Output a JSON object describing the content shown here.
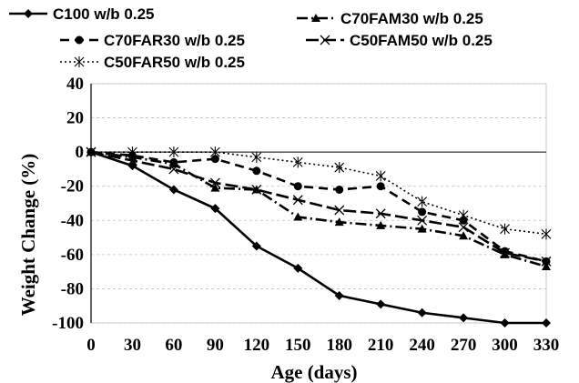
{
  "chart_data": {
    "type": "line",
    "title": "",
    "xlabel": "Age (days)",
    "ylabel": "Weight Change (%)",
    "x": [
      0,
      30,
      60,
      90,
      120,
      150,
      180,
      210,
      240,
      270,
      300,
      330
    ],
    "x_tick_labels": [
      "0",
      "30",
      "60",
      "90",
      "120",
      "150",
      "180",
      "210",
      "240",
      "270",
      "300",
      "330"
    ],
    "ylim": [
      -100,
      40
    ],
    "y_ticks": [
      40,
      20,
      0,
      -20,
      -40,
      -60,
      -80,
      -100
    ],
    "y_tick_labels": [
      "40",
      "20",
      "0",
      "-20",
      "-40",
      "-60",
      "-80",
      "-100"
    ],
    "grid": "horizontal dashed",
    "legend_position": "top",
    "series": [
      {
        "name": "C100 w/b 0.25",
        "marker": "diamond",
        "line_style": "solid",
        "color": "#000000",
        "values": [
          0,
          -8,
          -22,
          -33,
          -55,
          -68,
          -84,
          -89,
          -94,
          -97,
          -100,
          -100
        ]
      },
      {
        "name": "C70FAM30 w/b 0.25",
        "marker": "triangle",
        "line_style": "dash-dot",
        "color": "#000000",
        "values": [
          0,
          -3,
          -7,
          -21,
          -22,
          -38,
          -41,
          -43,
          -45,
          -49,
          -60,
          -67
        ]
      },
      {
        "name": "C70FAR30 w/b 0.25",
        "marker": "circle",
        "line_style": "dashed",
        "color": "#000000",
        "values": [
          0,
          -2,
          -6,
          -4,
          -11,
          -20,
          -22,
          -20,
          -35,
          -40,
          -58,
          -64
        ]
      },
      {
        "name": "C50FAM50 w/b 0.25",
        "marker": "x",
        "line_style": "long-dash",
        "color": "#000000",
        "values": [
          0,
          -5,
          -10,
          -18,
          -22,
          -28,
          -34,
          -36,
          -40,
          -44,
          -59,
          -64
        ]
      },
      {
        "name": "C50FAR50 w/b 0.25",
        "marker": "asterisk",
        "line_style": "dotted",
        "color": "#000000",
        "values": [
          0,
          0,
          0,
          0,
          -3,
          -6,
          -9,
          -14,
          -29,
          -37,
          -45,
          -48
        ]
      }
    ]
  }
}
